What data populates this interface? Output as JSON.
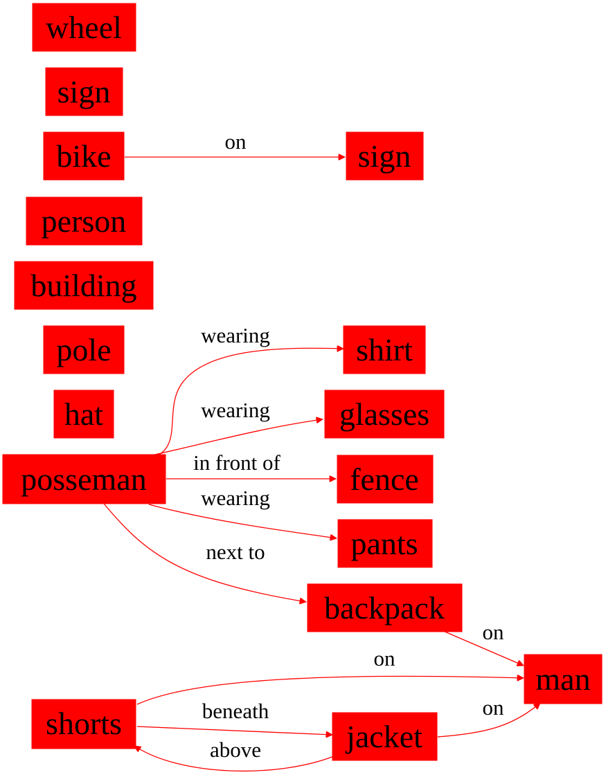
{
  "diagram": {
    "type": "scene-graph",
    "colors": {
      "node_fill": "#ff0000",
      "edge": "#ff0000",
      "text": "#000000"
    },
    "nodes": [
      {
        "id": "wheel",
        "label": "wheel"
      },
      {
        "id": "sign_left",
        "label": "sign"
      },
      {
        "id": "bike",
        "label": "bike"
      },
      {
        "id": "sign_right",
        "label": "sign"
      },
      {
        "id": "person",
        "label": "person"
      },
      {
        "id": "building",
        "label": "building"
      },
      {
        "id": "pole",
        "label": "pole"
      },
      {
        "id": "hat",
        "label": "hat"
      },
      {
        "id": "shirt",
        "label": "shirt"
      },
      {
        "id": "glasses",
        "label": "glasses"
      },
      {
        "id": "posseman",
        "label": "posseman"
      },
      {
        "id": "fence",
        "label": "fence"
      },
      {
        "id": "pants",
        "label": "pants"
      },
      {
        "id": "backpack",
        "label": "backpack"
      },
      {
        "id": "man",
        "label": "man"
      },
      {
        "id": "shorts",
        "label": "shorts"
      },
      {
        "id": "jacket",
        "label": "jacket"
      }
    ],
    "edges": [
      {
        "id": "bike_on_sign",
        "from": "bike",
        "to": "sign_right",
        "label": "on"
      },
      {
        "id": "posseman_wearing_shirt",
        "from": "posseman",
        "to": "shirt",
        "label": "wearing"
      },
      {
        "id": "posseman_wearing_glasses",
        "from": "posseman",
        "to": "glasses",
        "label": "wearing"
      },
      {
        "id": "posseman_infrontof_fence",
        "from": "posseman",
        "to": "fence",
        "label": "in front of"
      },
      {
        "id": "posseman_wearing_pants",
        "from": "posseman",
        "to": "pants",
        "label": "wearing"
      },
      {
        "id": "posseman_nextto_backpack",
        "from": "posseman",
        "to": "backpack",
        "label": "next to"
      },
      {
        "id": "backpack_on_man",
        "from": "backpack",
        "to": "man",
        "label": "on"
      },
      {
        "id": "shorts_on_man",
        "from": "shorts",
        "to": "man",
        "label": "on"
      },
      {
        "id": "shorts_beneath_jacket",
        "from": "shorts",
        "to": "jacket",
        "label": "beneath"
      },
      {
        "id": "jacket_above_shorts",
        "from": "jacket",
        "to": "shorts",
        "label": "above"
      },
      {
        "id": "jacket_on_man",
        "from": "jacket",
        "to": "man",
        "label": "on"
      }
    ]
  }
}
